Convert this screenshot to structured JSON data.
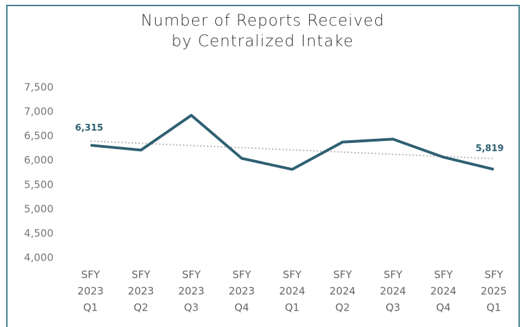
{
  "chart_data": {
    "type": "line",
    "title": [
      "Number of Reports Received",
      "by Centralized Intake"
    ],
    "categories": [
      [
        "SFY",
        "2023",
        "Q1"
      ],
      [
        "SFY",
        "2023",
        "Q2"
      ],
      [
        "SFY",
        "2023",
        "Q3"
      ],
      [
        "SFY",
        "2023",
        "Q4"
      ],
      [
        "SFY",
        "2024",
        "Q1"
      ],
      [
        "SFY",
        "2024",
        "Q2"
      ],
      [
        "SFY",
        "2024",
        "Q3"
      ],
      [
        "SFY",
        "2024",
        "Q4"
      ],
      [
        "SFY",
        "2025",
        "Q1"
      ]
    ],
    "series": [
      {
        "color": "#2e6072",
        "values": [
          6315,
          6215,
          6930,
          6045,
          5819,
          6380,
          6440,
          6070,
          5819
        ],
        "value_labels": [
          "6,315",
          null,
          null,
          null,
          null,
          null,
          null,
          null,
          "5,819"
        ]
      }
    ],
    "trend": {
      "color": "#b5b5b5",
      "values": [
        6400,
        6040
      ]
    },
    "ylim": [
      4000,
      7500
    ],
    "yticks": [
      {
        "value": 4000,
        "label": "4,000"
      },
      {
        "value": 4500,
        "label": "4,500"
      },
      {
        "value": 5000,
        "label": "5,000"
      },
      {
        "value": 5500,
        "label": "5,500"
      },
      {
        "value": 6000,
        "label": "6,000"
      },
      {
        "value": 6500,
        "label": "6,500"
      },
      {
        "value": 7000,
        "label": "7,000"
      },
      {
        "value": 7500,
        "label": "7,500"
      }
    ],
    "grid": false
  }
}
